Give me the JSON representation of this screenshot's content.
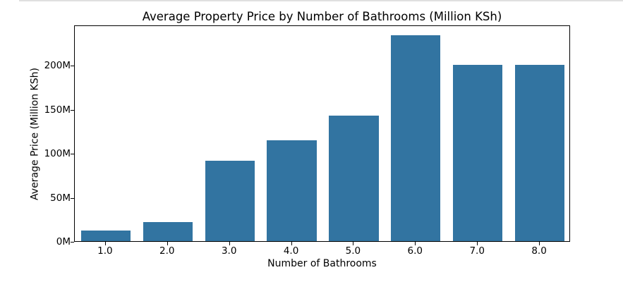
{
  "page": {
    "background": "#ffffff",
    "cell_top_border_color": "#e0e0e0"
  },
  "chart_data": {
    "type": "bar",
    "title": "Average Property Price by Number of Bathrooms (Million KSh)",
    "xlabel": "Number of Bathrooms",
    "ylabel": "Average Price (Million KSh)",
    "categories": [
      "1.0",
      "2.0",
      "3.0",
      "4.0",
      "5.0",
      "6.0",
      "7.0",
      "8.0"
    ],
    "values": [
      12,
      22,
      91,
      115,
      143,
      234,
      200,
      200
    ],
    "value_unit": "Million KSh",
    "ylim": [
      0,
      246
    ],
    "yticks": [
      0,
      50,
      100,
      150,
      200
    ],
    "ytick_labels": [
      "0M",
      "50M",
      "100M",
      "150M",
      "200M"
    ],
    "bar_color": "#3274a1",
    "bar_width_fraction": 0.8,
    "axis_color": "#000000",
    "text_color": "#000000",
    "grid": false,
    "legend": null
  }
}
